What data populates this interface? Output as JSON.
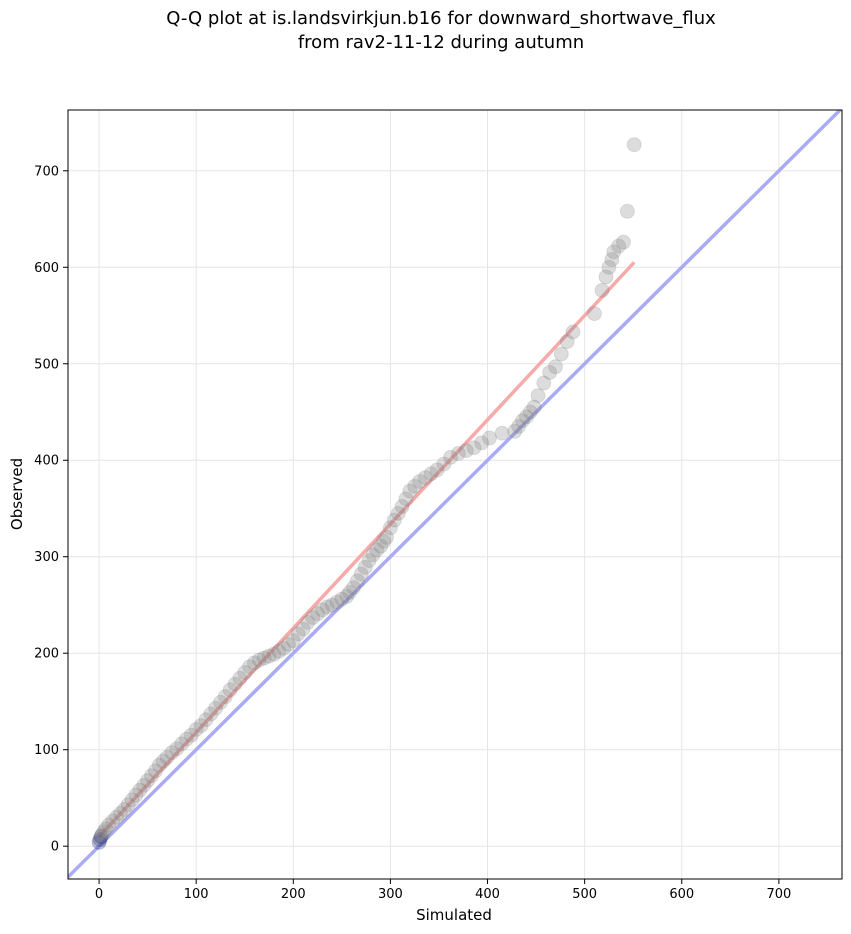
{
  "chart_data": {
    "type": "scatter",
    "title_line1": "Q-Q plot at is.landsvirkjun.b16 for downward_shortwave_flux",
    "title_line2": "from rav2-11-12 during autumn",
    "xlabel": "Simulated",
    "ylabel": "Observed",
    "xlim": [
      -32,
      765
    ],
    "ylim": [
      -34,
      763
    ],
    "xticks": [
      0,
      100,
      200,
      300,
      400,
      500,
      600,
      700
    ],
    "yticks": [
      0,
      100,
      200,
      300,
      400,
      500,
      600,
      700
    ],
    "grid": true,
    "colors": {
      "points": "#808080",
      "identity_line": "#aaaaf5",
      "fit_line": "#f7aaaa",
      "low_points": "#1c2a6b",
      "mid_trend": "#8b2020"
    },
    "identity_line": {
      "x": [
        -32,
        765
      ],
      "y": [
        -32,
        765
      ]
    },
    "fit_line": {
      "x": [
        0,
        551
      ],
      "y": [
        10,
        605
      ]
    },
    "points": {
      "x": [
        0,
        1,
        2,
        3,
        5,
        7,
        10,
        14,
        18,
        22,
        26,
        30,
        34,
        38,
        42,
        46,
        50,
        54,
        58,
        62,
        66,
        70,
        75,
        80,
        85,
        90,
        95,
        100,
        105,
        110,
        115,
        120,
        125,
        130,
        135,
        140,
        145,
        150,
        155,
        160,
        165,
        170,
        175,
        180,
        185,
        190,
        195,
        200,
        205,
        210,
        215,
        220,
        225,
        230,
        235,
        240,
        245,
        250,
        255,
        258,
        262,
        266,
        270,
        274,
        278,
        282,
        286,
        290,
        293,
        296,
        300,
        304,
        308,
        312,
        316,
        320,
        325,
        330,
        336,
        342,
        348,
        355,
        362,
        370,
        378,
        386,
        394,
        402,
        415,
        428,
        432,
        436,
        440,
        444,
        448,
        452,
        458,
        464,
        470,
        476,
        482,
        488,
        510,
        518,
        522,
        525,
        528,
        530,
        535,
        540,
        544,
        551
      ],
      "y": [
        4,
        7,
        10,
        12,
        15,
        18,
        22,
        26,
        30,
        34,
        38,
        43,
        48,
        53,
        58,
        63,
        68,
        73,
        78,
        84,
        88,
        92,
        97,
        101,
        106,
        111,
        115,
        121,
        125,
        131,
        137,
        143,
        149,
        155,
        162,
        168,
        174,
        180,
        186,
        190,
        193,
        195,
        197,
        199,
        202,
        205,
        209,
        213,
        220,
        225,
        232,
        237,
        241,
        245,
        248,
        250,
        253,
        256,
        259,
        263,
        268,
        275,
        282,
        289,
        296,
        302,
        307,
        311,
        316,
        320,
        330,
        338,
        345,
        352,
        360,
        368,
        373,
        378,
        382,
        386,
        390,
        396,
        403,
        407,
        410,
        413,
        418,
        423,
        428,
        430,
        435,
        441,
        445,
        450,
        455,
        467,
        480,
        491,
        497,
        510,
        523,
        533,
        552,
        576,
        590,
        600,
        608,
        616,
        622,
        626,
        658,
        727
      ]
    }
  }
}
